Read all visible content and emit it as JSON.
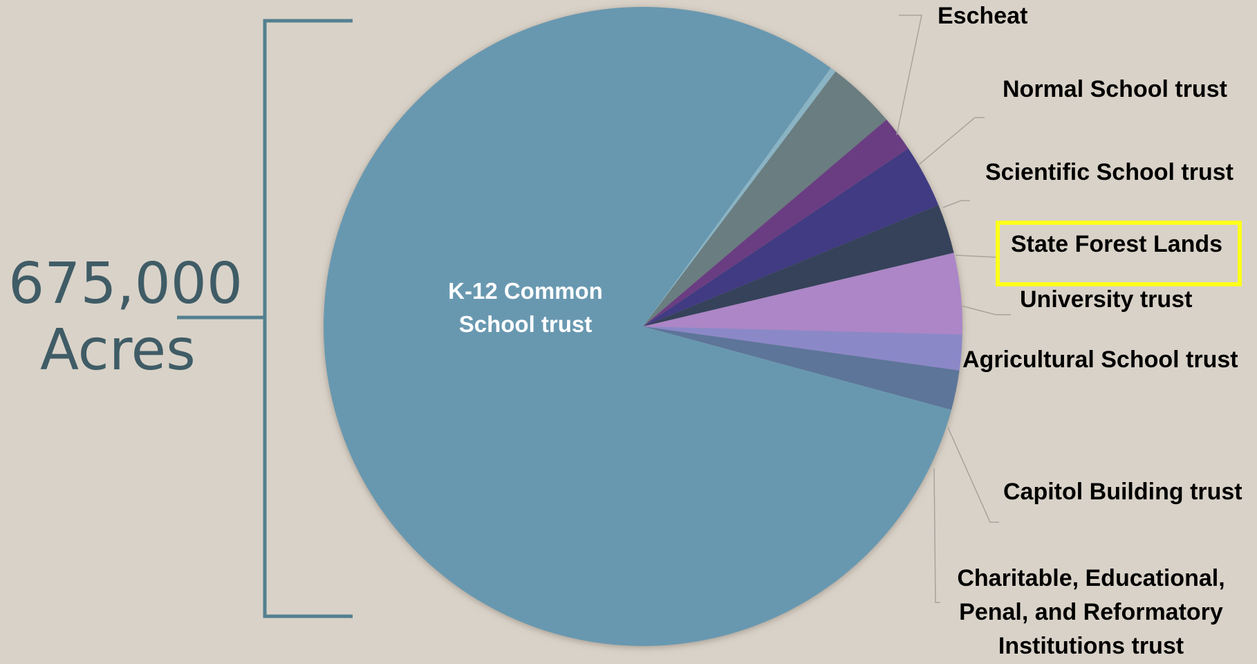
{
  "total": {
    "number": "675,000",
    "unit": "Acres"
  },
  "highlight": "State Forest Lands",
  "chart_data": {
    "type": "pie",
    "title": "",
    "start_angle_deg": 36,
    "direction": "clockwise",
    "slices": [
      {
        "label": "Escheat",
        "value": 0.3,
        "color": "#8ab4c4",
        "label_lines": [
          "Escheat"
        ]
      },
      {
        "label": "Normal School trust",
        "value": 3.5,
        "color": "#6a7d80",
        "label_lines": [
          "Normal School trust"
        ]
      },
      {
        "label": "Scientific School trust",
        "value": 1.8,
        "color": "#6a3c82",
        "label_lines": [
          "Scientific School trust"
        ]
      },
      {
        "label": "State Forest Lands",
        "value": 3.2,
        "color": "#3f3a82",
        "label_lines": [
          "State Forest Lands"
        ]
      },
      {
        "label": "University trust",
        "value": 2.5,
        "color": "#35425a",
        "label_lines": [
          "University trust"
        ]
      },
      {
        "label": "Agricultural School trust",
        "value": 4.1,
        "color": "#ac86c6",
        "label_lines": [
          "Agricultural School trust"
        ]
      },
      {
        "label": "Capitol Building trust",
        "value": 1.8,
        "color": "#8b88c8",
        "label_lines": [
          "Capitol Building trust"
        ]
      },
      {
        "label": "Charitable, Educational, Penal, and Reformatory Institutions trust",
        "value": 2.0,
        "color": "#5d7599",
        "label_lines": [
          "Charitable, Educational,",
          "Penal, and Reformatory",
          "Institutions trust"
        ]
      },
      {
        "label": "K-12 Common School trust",
        "value": 80.8,
        "color": "#6898b0",
        "label_lines": [
          "K-12 Common",
          "School trust"
        ]
      }
    ]
  }
}
